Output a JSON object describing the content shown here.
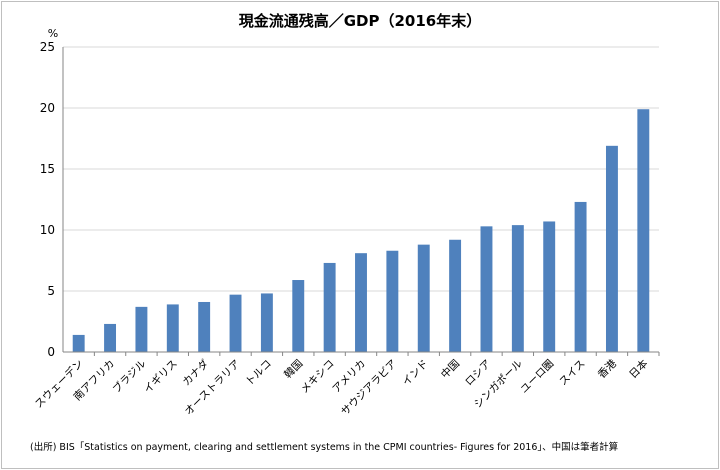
{
  "chart_data": {
    "type": "bar",
    "title": "現金流通残高／GDP（2016年末）",
    "ylabel": "%",
    "xlabel": "",
    "ylim": [
      0,
      25
    ],
    "yticks": [
      0,
      5,
      10,
      15,
      20,
      25
    ],
    "grid": true,
    "legend": "none",
    "categories": [
      "スウェーデン",
      "南アフリカ",
      "ブラジル",
      "イギリス",
      "カナダ",
      "オーストラリア",
      "トルコ",
      "韓国",
      "メキシコ",
      "アメリカ",
      "サウジアラビア",
      "インド",
      "中国",
      "ロシア",
      "シンガポール",
      "ユーロ圏",
      "スイス",
      "香港",
      "日本"
    ],
    "values": [
      1.4,
      2.3,
      3.7,
      3.9,
      4.1,
      4.7,
      4.8,
      5.9,
      7.3,
      8.1,
      8.3,
      8.8,
      9.2,
      10.3,
      10.4,
      10.7,
      12.3,
      16.9,
      19.9
    ],
    "colors": {
      "bar": "#4f81bd",
      "grid": "#d9d9d9",
      "axis": "#868686"
    }
  },
  "source": "(出所) BIS「Statistics on payment, clearing and settlement systems in the CPMI countries- Figures for 2016」、中国は筆者計算"
}
